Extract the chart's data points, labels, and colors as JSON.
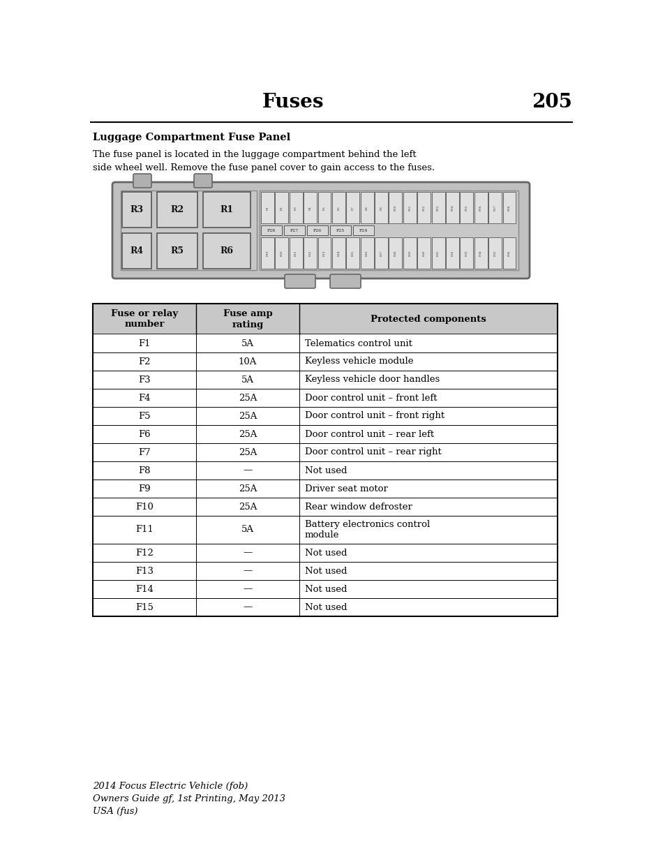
{
  "page_title": "Fuses",
  "page_number": "205",
  "section_title": "Luggage Compartment Fuse Panel",
  "section_body": "The fuse panel is located in the luggage compartment behind the left\nside wheel well. Remove the fuse panel cover to gain access to the fuses.",
  "table_headers": [
    "Fuse or relay\nnumber",
    "Fuse amp\nrating",
    "Protected components"
  ],
  "table_rows": [
    [
      "F1",
      "5A",
      "Telematics control unit"
    ],
    [
      "F2",
      "10A",
      "Keyless vehicle module"
    ],
    [
      "F3",
      "5A",
      "Keyless vehicle door handles"
    ],
    [
      "F4",
      "25A",
      "Door control unit – front left"
    ],
    [
      "F5",
      "25A",
      "Door control unit – front right"
    ],
    [
      "F6",
      "25A",
      "Door control unit – rear left"
    ],
    [
      "F7",
      "25A",
      "Door control unit – rear right"
    ],
    [
      "F8",
      "—",
      "Not used"
    ],
    [
      "F9",
      "25A",
      "Driver seat motor"
    ],
    [
      "F10",
      "25A",
      "Rear window defroster"
    ],
    [
      "F11",
      "5A",
      "Battery electronics control\nmodule"
    ],
    [
      "F12",
      "—",
      "Not used"
    ],
    [
      "F13",
      "—",
      "Not used"
    ],
    [
      "F14",
      "—",
      "Not used"
    ],
    [
      "F15",
      "—",
      "Not used"
    ]
  ],
  "footer_line1": "2014 Focus Electric Vehicle (fob)",
  "footer_line2": "Owners Guide gf, 1st Printing, May 2013",
  "footer_line3": "USA (fus)",
  "bg_color": "#ffffff",
  "header_bg": "#c8c8c8",
  "table_border": "#000000",
  "text_color": "#000000",
  "title_color": "#000000",
  "footer_color": "#000000",
  "diagram_bg": "#c0c0c0",
  "relay_bg": "#b8b8b8",
  "relay_box_bg": "#d4d4d4",
  "fuse_box_bg": "#e0e0e0"
}
